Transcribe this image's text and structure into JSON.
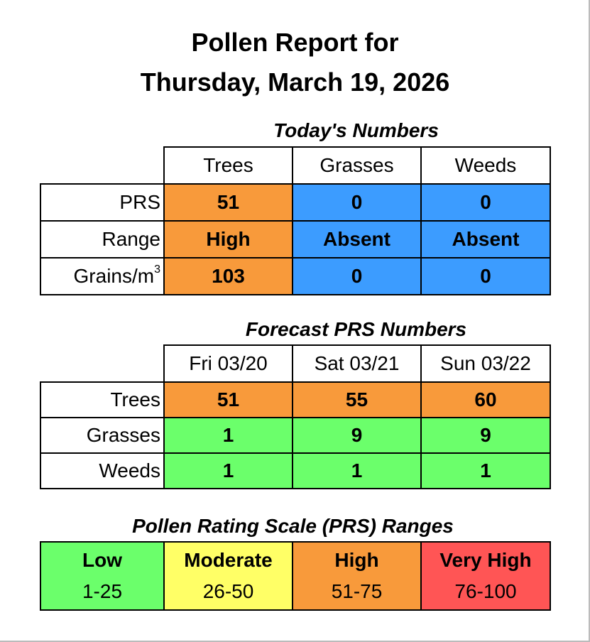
{
  "report": {
    "title_line1": "Pollen Report for",
    "title_line2": "Thursday, March 19, 2026"
  },
  "today": {
    "title": "Today's Numbers",
    "columns": [
      "Trees",
      "Grasses",
      "Weeds"
    ],
    "rows": [
      {
        "label": "PRS",
        "values": [
          "51",
          "0",
          "0"
        ]
      },
      {
        "label": "Range",
        "values": [
          "High",
          "Absent",
          "Absent"
        ]
      },
      {
        "label": "Grains/m",
        "label_sup": "3",
        "values": [
          "103",
          "0",
          "0"
        ]
      }
    ],
    "column_colors": [
      "#f89a3b",
      "#3c9cff",
      "#3c9cff"
    ]
  },
  "forecast": {
    "title": "Forecast PRS Numbers",
    "columns": [
      "Fri 03/20",
      "Sat 03/21",
      "Sun 03/22"
    ],
    "rows": [
      {
        "label": "Trees",
        "values": [
          "51",
          "55",
          "60"
        ],
        "color": "#f89a3b"
      },
      {
        "label": "Grasses",
        "values": [
          "1",
          "9",
          "9"
        ],
        "color": "#6bff6b"
      },
      {
        "label": "Weeds",
        "values": [
          "1",
          "1",
          "1"
        ],
        "color": "#6bff6b"
      }
    ]
  },
  "scale": {
    "title": "Pollen Rating Scale (PRS) Ranges",
    "levels": [
      {
        "label": "Low",
        "range": "1-25",
        "color": "#6bff6b"
      },
      {
        "label": "Moderate",
        "range": "26-50",
        "color": "#ffff66"
      },
      {
        "label": "High",
        "range": "51-75",
        "color": "#f89a3b"
      },
      {
        "label": "Very High",
        "range": "76-100",
        "color": "#ff5555"
      }
    ]
  }
}
